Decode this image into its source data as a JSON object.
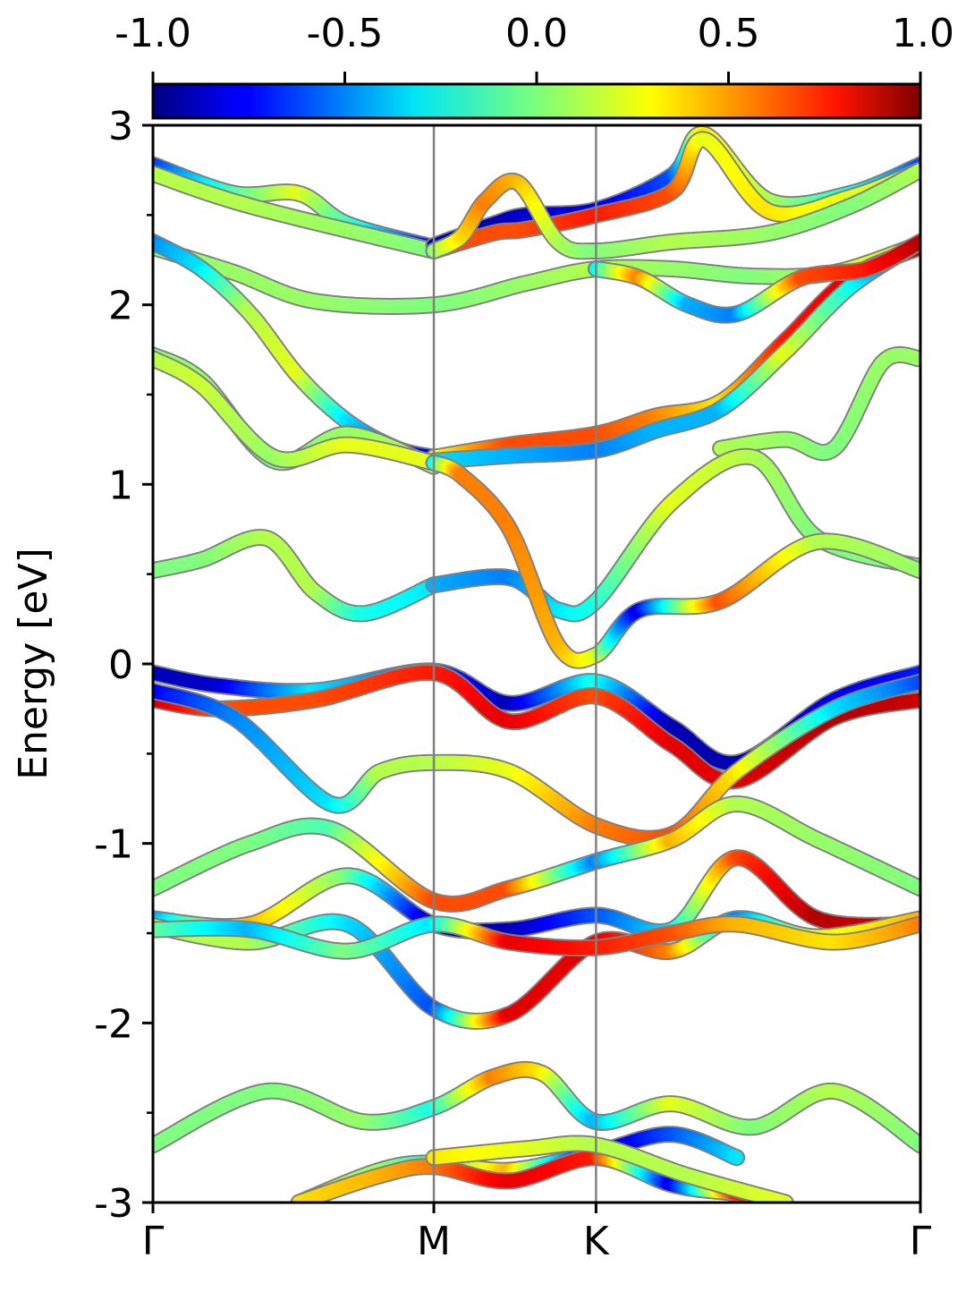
{
  "chart_data": {
    "type": "line",
    "title": "",
    "ylabel": "Energy [eV]",
    "xlabel": "",
    "ylim": [
      -3,
      3
    ],
    "yticks": [
      {
        "v": -3,
        "label": "-3"
      },
      {
        "v": -2,
        "label": "-2"
      },
      {
        "v": -1,
        "label": "-1"
      },
      {
        "v": 0,
        "label": "0"
      },
      {
        "v": 1,
        "label": "1"
      },
      {
        "v": 2,
        "label": "2"
      },
      {
        "v": 3,
        "label": "3"
      }
    ],
    "minor_yticks": [
      -2.5,
      -1.5,
      -0.5,
      0.5,
      1.5,
      2.5
    ],
    "kpoints": [
      {
        "label": "Γ",
        "x": 0
      },
      {
        "label": "M",
        "x": 1.732
      },
      {
        "label": "K",
        "x": 2.732
      },
      {
        "label": "Γ",
        "x": 4.732
      }
    ],
    "colorbar": {
      "colormap": "jet",
      "range": [
        -1.0,
        1.0
      ],
      "ticks": [
        {
          "v": -1.0,
          "label": "-1.0"
        },
        {
          "v": -0.5,
          "label": "-0.5"
        },
        {
          "v": 0.0,
          "label": "0.0"
        },
        {
          "v": 0.5,
          "label": "0.5"
        },
        {
          "v": 1.0,
          "label": "1.0"
        }
      ]
    },
    "series": [
      {
        "x": [
          0,
          0.5,
          0.9,
          1.2,
          1.732
        ],
        "y": [
          2.78,
          2.62,
          2.62,
          2.45,
          2.32
        ],
        "c": [
          -0.7,
          -0.1,
          0.2,
          -0.1,
          -0.8
        ]
      },
      {
        "x": [
          0,
          0.6,
          1.732
        ],
        "y": [
          2.73,
          2.55,
          2.3
        ],
        "c": [
          0.1,
          0.1,
          0.0
        ]
      },
      {
        "x": [
          1.732,
          2.1,
          2.3,
          2.732,
          3.2,
          3.4,
          3.8,
          4.3,
          4.732
        ],
        "y": [
          2.33,
          2.45,
          2.5,
          2.53,
          2.72,
          2.95,
          2.58,
          2.62,
          2.78
        ],
        "c": [
          -0.9,
          -0.9,
          -0.85,
          -0.8,
          -0.6,
          0.3,
          0.1,
          -0.2,
          -0.6
        ]
      },
      {
        "x": [
          1.732,
          2.1,
          2.3,
          2.732,
          3.2,
          3.4,
          3.8,
          4.3,
          4.732
        ],
        "y": [
          2.3,
          2.4,
          2.42,
          2.5,
          2.63,
          2.92,
          2.52,
          2.6,
          2.75
        ],
        "c": [
          0.6,
          0.6,
          0.6,
          0.7,
          0.6,
          0.2,
          0.3,
          0.2,
          0.1
        ]
      },
      {
        "x": [
          1.732,
          1.9,
          2.05,
          2.25,
          2.5,
          2.732,
          3.2,
          3.8,
          4.3,
          4.732
        ],
        "y": [
          2.3,
          2.38,
          2.58,
          2.68,
          2.35,
          2.3,
          2.35,
          2.4,
          2.55,
          2.75
        ],
        "c": [
          0.0,
          0.3,
          0.5,
          0.4,
          0.1,
          0.0,
          0.1,
          0.05,
          0.0,
          0.1
        ]
      },
      {
        "x": [
          0,
          0.5,
          1.0,
          1.732,
          2.3,
          2.732,
          3.2,
          3.7,
          4.2,
          4.732
        ],
        "y": [
          2.32,
          2.18,
          2.02,
          2.0,
          2.12,
          2.2,
          2.2,
          2.16,
          2.18,
          2.34
        ],
        "c": [
          0.0,
          0.05,
          0.05,
          0.0,
          0.05,
          0.1,
          0.05,
          0.0,
          0.1,
          0.3
        ]
      },
      {
        "x": [
          0,
          0.3,
          0.6,
          0.9,
          1.2,
          1.5,
          1.732
        ],
        "y": [
          2.35,
          2.2,
          1.95,
          1.6,
          1.35,
          1.2,
          1.15
        ],
        "c": [
          -0.5,
          -0.3,
          0.1,
          0.2,
          -0.3,
          -0.6,
          -0.8
        ]
      },
      {
        "x": [
          1.732,
          2.2,
          2.732,
          3.1,
          3.5,
          3.9,
          4.3,
          4.732
        ],
        "y": [
          1.15,
          1.22,
          1.28,
          1.38,
          1.46,
          1.8,
          2.15,
          2.32
        ],
        "c": [
          0.2,
          0.6,
          0.6,
          0.5,
          0.3,
          0.7,
          0.8,
          0.9
        ]
      },
      {
        "x": [
          1.732,
          2.2,
          2.732,
          3.1,
          3.5,
          3.9,
          4.3,
          4.732
        ],
        "y": [
          1.13,
          1.16,
          1.19,
          1.3,
          1.42,
          1.74,
          2.1,
          2.35
        ],
        "c": [
          -0.3,
          -0.4,
          -0.5,
          -0.4,
          -0.4,
          0.2,
          -0.2,
          -0.8
        ]
      },
      {
        "x": [
          2.732,
          3.0,
          3.3,
          3.6,
          4.0,
          4.4,
          4.732
        ],
        "y": [
          2.2,
          2.15,
          2.0,
          1.95,
          2.15,
          2.2,
          2.35
        ],
        "c": [
          -0.3,
          0.5,
          -0.4,
          -0.5,
          0.6,
          0.7,
          0.9
        ]
      },
      {
        "x": [
          0,
          0.3,
          0.75,
          1.2,
          1.732
        ],
        "y": [
          1.72,
          1.58,
          1.13,
          1.28,
          1.1
        ],
        "c": [
          0.0,
          0.05,
          0.0,
          0.05,
          0.1
        ]
      },
      {
        "x": [
          0,
          0.3,
          0.75,
          1.2,
          1.732
        ],
        "y": [
          1.7,
          1.55,
          1.15,
          1.22,
          1.12
        ],
        "c": [
          0.1,
          0.15,
          0.05,
          0.2,
          0.2
        ]
      },
      {
        "x": [
          3.5,
          3.9,
          4.2,
          4.5,
          4.732
        ],
        "y": [
          1.2,
          1.25,
          1.2,
          1.68,
          1.7
        ],
        "c": [
          0.1,
          0.05,
          0.0,
          0.05,
          0.05
        ]
      },
      {
        "x": [
          0,
          0.3,
          0.7,
          1.0,
          1.3,
          1.732
        ],
        "y": [
          0.52,
          0.58,
          0.7,
          0.4,
          0.28,
          0.44
        ],
        "c": [
          0.0,
          0.0,
          0.1,
          0.1,
          -0.2,
          -0.3
        ]
      },
      {
        "x": [
          1.732,
          2.2,
          2.5,
          2.732,
          3.2,
          3.7,
          4.1,
          4.732
        ],
        "y": [
          0.44,
          0.48,
          0.3,
          0.35,
          0.9,
          1.15,
          0.7,
          0.54
        ],
        "c": [
          -0.4,
          -0.5,
          -0.3,
          -0.2,
          0.2,
          0.1,
          0.0,
          0.0
        ]
      },
      {
        "x": [
          1.732,
          1.9,
          2.2,
          2.5,
          2.732,
          3.0,
          3.5,
          4.1,
          4.732
        ],
        "y": [
          1.12,
          1.05,
          0.75,
          0.1,
          0.05,
          0.3,
          0.35,
          0.68,
          0.52
        ],
        "c": [
          -0.3,
          0.5,
          0.5,
          0.4,
          0.2,
          -0.8,
          0.6,
          0.1,
          0.05
        ]
      },
      {
        "x": [
          0,
          0.4,
          1.0,
          1.732,
          2.2,
          2.732,
          3.2,
          3.6,
          4.2,
          4.732
        ],
        "y": [
          -0.05,
          -0.12,
          -0.15,
          -0.04,
          -0.22,
          -0.1,
          -0.35,
          -0.55,
          -0.2,
          -0.05
        ],
        "c": [
          -0.9,
          -0.85,
          -0.3,
          -0.6,
          -0.9,
          -0.2,
          -0.9,
          -0.9,
          -0.8,
          -0.7
        ]
      },
      {
        "x": [
          0,
          0.4,
          1.0,
          1.732,
          2.2,
          2.732,
          3.2,
          3.6,
          4.2,
          4.732
        ],
        "y": [
          -0.2,
          -0.25,
          -0.2,
          -0.05,
          -0.32,
          -0.18,
          -0.45,
          -0.65,
          -0.3,
          -0.2
        ],
        "c": [
          0.9,
          0.6,
          0.6,
          0.7,
          0.8,
          0.6,
          0.8,
          0.8,
          0.9,
          0.85
        ]
      },
      {
        "x": [
          0,
          0.5,
          1.1,
          1.4,
          1.732,
          2.2,
          2.732,
          3.2,
          3.6,
          4.2,
          4.732
        ],
        "y": [
          -0.15,
          -0.3,
          -0.78,
          -0.6,
          -0.55,
          -0.6,
          -0.9,
          -0.95,
          -0.6,
          -0.25,
          -0.1
        ],
        "c": [
          -0.8,
          -0.5,
          -0.3,
          0.1,
          0.1,
          0.2,
          0.5,
          0.6,
          0.3,
          -0.3,
          -0.6
        ]
      },
      {
        "x": [
          0,
          0.6,
          1.1,
          1.732,
          2.2,
          2.732,
          3.2,
          3.6,
          4.1,
          4.732
        ],
        "y": [
          -1.25,
          -1.0,
          -0.92,
          -1.32,
          -1.25,
          -1.1,
          -0.98,
          -0.78,
          -0.98,
          -1.25
        ],
        "c": [
          0.0,
          0.0,
          -0.1,
          0.6,
          0.6,
          -0.5,
          0.4,
          0.1,
          0.05,
          0.0
        ]
      },
      {
        "x": [
          0,
          0.6,
          1.2,
          1.732,
          2.2,
          2.732,
          3.2,
          3.6,
          4.1,
          4.732
        ],
        "y": [
          -1.42,
          -1.45,
          -1.18,
          -1.45,
          -1.48,
          -1.4,
          -1.48,
          -1.08,
          -1.42,
          -1.45
        ],
        "c": [
          -0.5,
          0.4,
          0.0,
          -0.9,
          -0.9,
          -0.6,
          -0.3,
          0.6,
          0.9,
          0.8
        ]
      },
      {
        "x": [
          0,
          0.6,
          1.2,
          1.732,
          2.2,
          2.732,
          3.2,
          3.6,
          4.1,
          4.732
        ],
        "y": [
          -1.46,
          -1.55,
          -1.45,
          -1.92,
          -1.95,
          -1.55,
          -1.6,
          -1.42,
          -1.52,
          -1.42
        ],
        "c": [
          0.1,
          0.1,
          -0.3,
          -0.6,
          0.8,
          0.8,
          0.5,
          -0.5,
          0.2,
          0.4
        ]
      },
      {
        "x": [
          0,
          0.6,
          1.2,
          1.732,
          2.2,
          2.732,
          3.2,
          3.6,
          4.2,
          4.732
        ],
        "y": [
          -1.48,
          -1.48,
          -1.6,
          -1.45,
          -1.55,
          -1.58,
          -1.5,
          -1.45,
          -1.55,
          -1.45
        ],
        "c": [
          0.0,
          -0.4,
          0.0,
          -0.3,
          0.8,
          0.7,
          0.6,
          0.4,
          0.3,
          0.5
        ]
      },
      {
        "x": [
          0,
          0.7,
          1.3,
          1.732,
          2.1,
          2.4,
          2.732,
          3.2,
          3.7,
          4.2,
          4.732
        ],
        "y": [
          -2.68,
          -2.38,
          -2.55,
          -2.47,
          -2.3,
          -2.28,
          -2.55,
          -2.45,
          -2.58,
          -2.38,
          -2.68
        ],
        "c": [
          0.0,
          0.0,
          0.05,
          -0.2,
          0.5,
          0.3,
          -0.4,
          0.2,
          0.0,
          0.1,
          0.0
        ]
      },
      {
        "x": [
          0.9,
          1.4,
          1.732,
          2.2,
          2.732,
          3.2,
          3.6
        ],
        "y": [
          -3.0,
          -2.82,
          -2.78,
          -2.82,
          -2.72,
          -2.62,
          -2.75
        ],
        "c": [
          0.1,
          0.05,
          -0.2,
          0.4,
          -0.9,
          -0.6,
          -0.3
        ]
      },
      {
        "x": [
          0.9,
          1.4,
          1.732,
          2.2,
          2.732,
          3.2,
          3.6,
          3.9
        ],
        "y": [
          -3.0,
          -2.85,
          -2.8,
          -2.88,
          -2.75,
          -2.9,
          -2.95,
          -3.0
        ],
        "c": [
          0.3,
          0.4,
          0.5,
          0.8,
          0.7,
          -0.8,
          0.7,
          0.5
        ]
      },
      {
        "x": [
          1.732,
          2.3,
          2.732,
          3.3,
          3.9
        ],
        "y": [
          -2.75,
          -2.7,
          -2.68,
          -2.85,
          -3.0
        ],
        "c": [
          0.3,
          0.2,
          0.1,
          0.1,
          0.2
        ]
      }
    ]
  }
}
